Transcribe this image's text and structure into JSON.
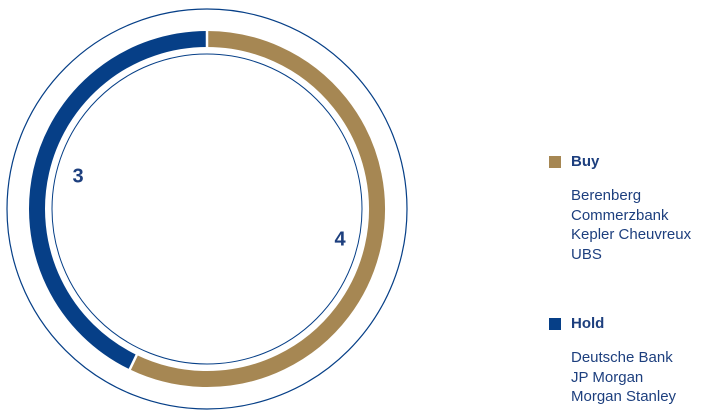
{
  "chart_data": {
    "type": "pie",
    "variant": "donut",
    "categories": [
      "Buy",
      "Hold"
    ],
    "values": [
      4,
      3
    ],
    "colors": {
      "Buy": "#a68753",
      "Hold": "#063f87"
    },
    "outline_color": "#063f87",
    "data_labels": [
      "4",
      "3"
    ],
    "legend": {
      "placement": "right",
      "entries": [
        {
          "label": "Buy",
          "members": [
            "Berenberg",
            "Commerzbank",
            "Kepler Cheuvreux",
            "UBS"
          ]
        },
        {
          "label": "Hold",
          "members": [
            "Deutsche Bank",
            "JP Morgan",
            "Morgan Stanley"
          ]
        }
      ]
    }
  }
}
